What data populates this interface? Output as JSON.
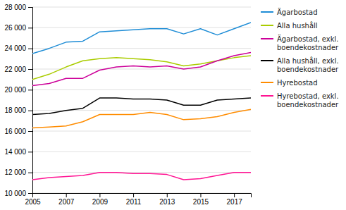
{
  "chart_data": {
    "type": "line",
    "x": [
      2005,
      2006,
      2007,
      2008,
      2009,
      2010,
      2011,
      2012,
      2013,
      2014,
      2015,
      2016,
      2017,
      2018
    ],
    "series": [
      {
        "name": "Ägarbostad",
        "color": "#1F8DD6",
        "values": [
          23500,
          24000,
          24600,
          24700,
          25600,
          25700,
          25800,
          25900,
          25900,
          25400,
          25900,
          25300,
          25900,
          26500
        ]
      },
      {
        "name": "Alla hushåll",
        "color": "#AACC00",
        "values": [
          21000,
          21500,
          22200,
          22800,
          23000,
          23100,
          23000,
          22900,
          22700,
          22300,
          22500,
          22800,
          23100,
          23300
        ]
      },
      {
        "name": "Ägarbostad, exkl.\nboendekostnader",
        "color": "#CC0099",
        "values": [
          20400,
          20600,
          21100,
          21100,
          21900,
          22200,
          22300,
          22200,
          22300,
          22000,
          22200,
          22800,
          23300,
          23600
        ]
      },
      {
        "name": "Alla hushåll, exkl.\nboendekostnader",
        "color": "#000000",
        "values": [
          17600,
          17700,
          18000,
          18200,
          19200,
          19200,
          19100,
          19100,
          19000,
          18500,
          18500,
          19000,
          19100,
          19200
        ]
      },
      {
        "name": "Hyrebostad",
        "color": "#FF8C00",
        "values": [
          16300,
          16400,
          16500,
          16900,
          17600,
          17600,
          17600,
          17800,
          17600,
          17100,
          17200,
          17400,
          17800,
          18100
        ]
      },
      {
        "name": "Hyrebostad, exkl.\nboendekostnader",
        "color": "#FF1493",
        "values": [
          11300,
          11500,
          11600,
          11700,
          12000,
          12000,
          11900,
          11900,
          11800,
          11300,
          11400,
          11700,
          12000,
          12000
        ]
      }
    ],
    "xlim": [
      2005,
      2018
    ],
    "xticks": [
      2005,
      2007,
      2009,
      2011,
      2013,
      2015,
      2017
    ],
    "ylim": [
      10000,
      28000
    ],
    "yticks": [
      {
        "value": 10000,
        "label": "10 000"
      },
      {
        "value": 12000,
        "label": "12 000"
      },
      {
        "value": 14000,
        "label": "14 000"
      },
      {
        "value": 16000,
        "label": "16 000"
      },
      {
        "value": 18000,
        "label": "18 000"
      },
      {
        "value": 20000,
        "label": "20 000"
      },
      {
        "value": 22000,
        "label": "22 000"
      },
      {
        "value": 24000,
        "label": "24 000"
      },
      {
        "value": 26000,
        "label": "26 000"
      },
      {
        "value": 28000,
        "label": "28 000"
      }
    ],
    "grid": true,
    "legend": "right"
  }
}
